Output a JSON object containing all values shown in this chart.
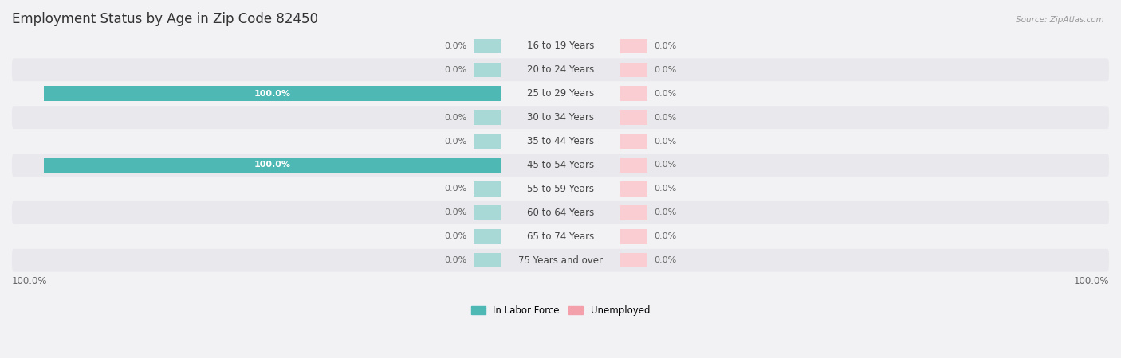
{
  "title": "Employment Status by Age in Zip Code 82450",
  "source": "Source: ZipAtlas.com",
  "age_groups": [
    "16 to 19 Years",
    "20 to 24 Years",
    "25 to 29 Years",
    "30 to 34 Years",
    "35 to 44 Years",
    "45 to 54 Years",
    "55 to 59 Years",
    "60 to 64 Years",
    "65 to 74 Years",
    "75 Years and over"
  ],
  "in_labor_force": [
    0.0,
    0.0,
    100.0,
    0.0,
    0.0,
    100.0,
    0.0,
    0.0,
    0.0,
    0.0
  ],
  "unemployed": [
    0.0,
    0.0,
    0.0,
    0.0,
    0.0,
    0.0,
    0.0,
    0.0,
    0.0,
    0.0
  ],
  "labor_color": "#4db8b4",
  "labor_alpha_color": "#a8d9d7",
  "unemployed_color": "#f4a0aa",
  "unemployed_alpha_color": "#f9cdd2",
  "row_bg_light": "#f2f2f5",
  "row_bg_dark": "#e8e8ed",
  "title_color": "#333333",
  "source_color": "#999999",
  "label_color": "#444444",
  "value_color_inside": "#ffffff",
  "value_color_outside": "#666666",
  "max_value": 100.0,
  "placeholder_pct": 6.0,
  "bar_height": 0.62,
  "title_fontsize": 12,
  "label_fontsize": 8.5,
  "value_fontsize": 8.0,
  "axis_tick_fontsize": 8.5,
  "legend_fontsize": 8.5,
  "source_fontsize": 7.5
}
